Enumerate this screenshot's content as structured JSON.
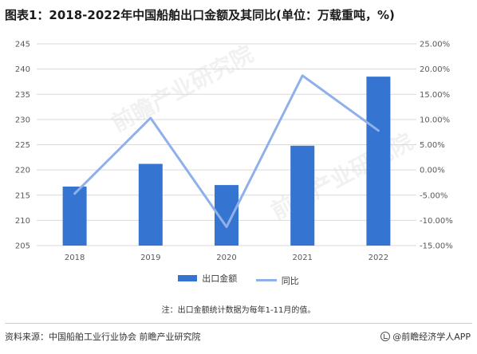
{
  "title": "图表1：2018-2022年中国船舶出口金额及其同比(单位：万载重吨，%)",
  "chart_data": {
    "type": "bar",
    "categories": [
      "2018",
      "2019",
      "2020",
      "2021",
      "2022"
    ],
    "series": [
      {
        "name": "出口金额",
        "type": "bar",
        "axis": "left",
        "color": "#3574d1",
        "values": [
          216.7,
          221.2,
          217.0,
          224.8,
          238.5
        ]
      },
      {
        "name": "同比",
        "type": "line",
        "axis": "right",
        "color": "#8fb0ea",
        "values": [
          -4.7,
          10.3,
          -11.3,
          18.7,
          7.8
        ]
      }
    ],
    "y_left": {
      "min": 205,
      "max": 245,
      "step": 5,
      "ticks": [
        "205",
        "210",
        "215",
        "220",
        "225",
        "230",
        "235",
        "240",
        "245"
      ]
    },
    "y_right": {
      "min": -15,
      "max": 25,
      "step": 5,
      "ticks": [
        "-15.00%",
        "-10.00%",
        "-5.00%",
        "0.00%",
        "5.00%",
        "10.00%",
        "15.00%",
        "20.00%",
        "25.00%"
      ]
    },
    "grid": true,
    "legend_position": "bottom"
  },
  "legend": {
    "bar_label": "出口金额",
    "line_label": "同比"
  },
  "note": "注：出口金额统计数据为每年1-11月的值。",
  "source": "资料来源：中国船舶工业行业协会 前瞻产业研究院",
  "brand": "@前瞻经济学人APP",
  "watermark": "前瞻产业研究院"
}
